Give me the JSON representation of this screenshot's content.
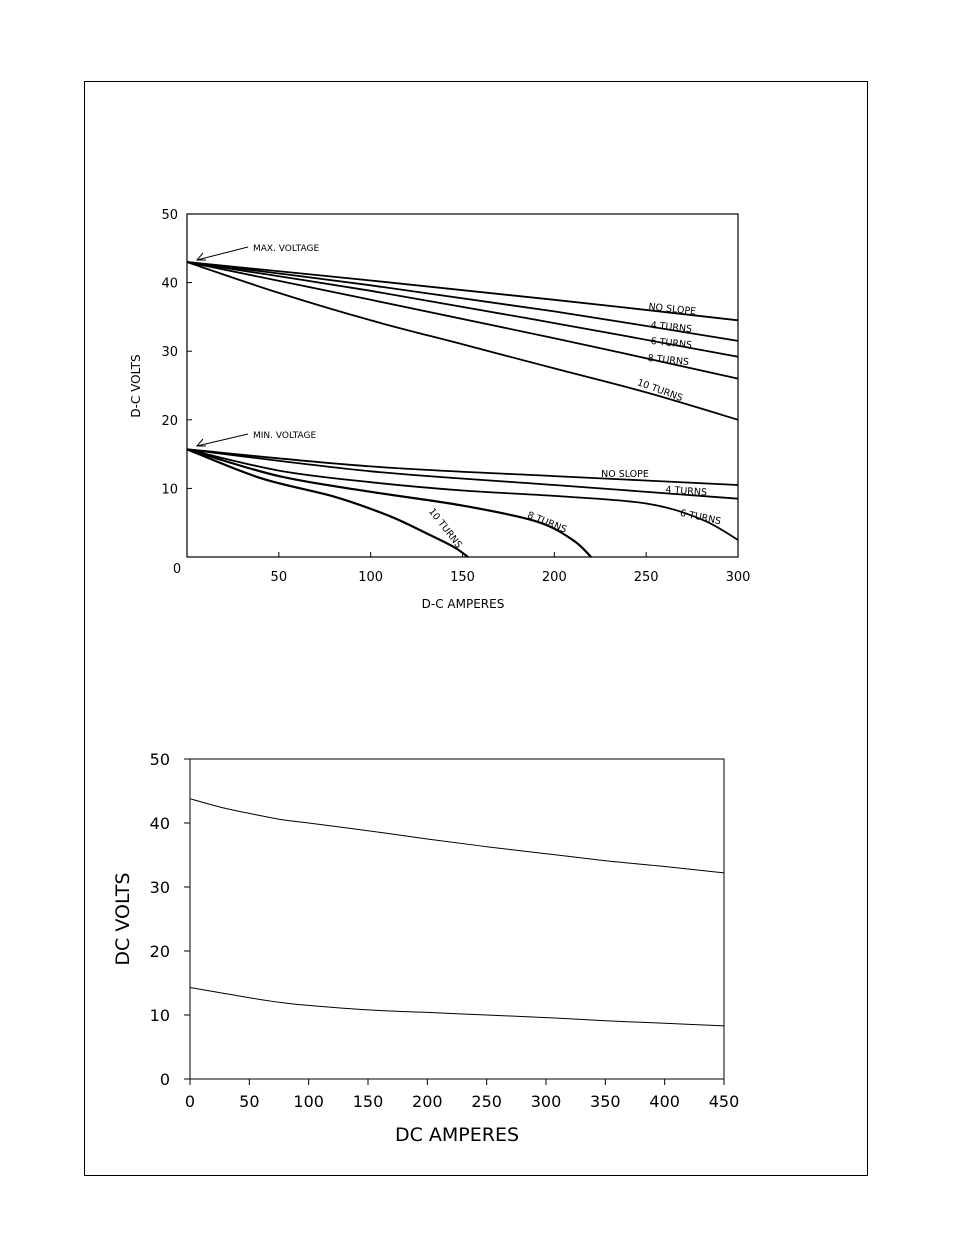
{
  "chart_data": [
    {
      "type": "line",
      "xlabel": "D-C AMPERES",
      "ylabel": "D-C VOLTS",
      "xlim": [
        0,
        300
      ],
      "ylim": [
        0,
        50
      ],
      "x_ticks": [
        "0",
        "50",
        "100",
        "150",
        "200",
        "250",
        "300"
      ],
      "y_ticks": [
        "50",
        "40",
        "30",
        "20",
        "10"
      ],
      "annotations": [
        "MAX. VOLTAGE",
        "MIN. VOLTAGE"
      ],
      "series": [
        {
          "name": "NO SLOPE",
          "group": "max",
          "x": [
            0,
            100,
            200,
            300
          ],
          "y": [
            43,
            40.3,
            37.5,
            34.5
          ]
        },
        {
          "name": "4 TURNS",
          "group": "max",
          "x": [
            0,
            100,
            200,
            300
          ],
          "y": [
            43,
            39.6,
            35.8,
            31.5
          ]
        },
        {
          "name": "6 TURNS",
          "group": "max",
          "x": [
            0,
            100,
            200,
            300
          ],
          "y": [
            43,
            38.8,
            34.1,
            29.2
          ]
        },
        {
          "name": "8 TURNS",
          "group": "max",
          "x": [
            0,
            100,
            200,
            300
          ],
          "y": [
            43,
            37.5,
            31.9,
            26
          ]
        },
        {
          "name": "10 TURNS",
          "group": "max",
          "x": [
            0,
            50,
            100,
            150,
            200,
            250,
            300
          ],
          "y": [
            43,
            38.5,
            34.5,
            31,
            27.5,
            24,
            20
          ]
        },
        {
          "name": "NO SLOPE",
          "group": "min",
          "x": [
            0,
            100,
            200,
            300
          ],
          "y": [
            15.7,
            13.2,
            11.8,
            10.5
          ]
        },
        {
          "name": "4 TURNS",
          "group": "min",
          "x": [
            0,
            100,
            200,
            300
          ],
          "y": [
            15.7,
            12.5,
            10.5,
            8.5
          ]
        },
        {
          "name": "6 TURNS",
          "group": "min",
          "x": [
            0,
            50,
            100,
            150,
            200,
            250,
            280,
            300
          ],
          "y": [
            15.7,
            12.6,
            10.9,
            9.7,
            8.9,
            7.8,
            5.5,
            2.5
          ]
        },
        {
          "name": "8 TURNS",
          "group": "min",
          "x": [
            0,
            50,
            100,
            150,
            190,
            210,
            220
          ],
          "y": [
            15.7,
            11.8,
            9.5,
            7.5,
            5.2,
            2.5,
            0
          ]
        },
        {
          "name": "10 TURNS",
          "group": "min",
          "x": [
            0,
            40,
            80,
            110,
            130,
            145,
            153
          ],
          "y": [
            15.7,
            11.5,
            8.8,
            6,
            3.5,
            1.5,
            0
          ]
        }
      ]
    },
    {
      "type": "line",
      "xlabel": "DC AMPERES",
      "ylabel": "DC VOLTS",
      "xlim": [
        0,
        450
      ],
      "ylim": [
        0,
        50
      ],
      "x_ticks": [
        "0",
        "50",
        "100",
        "150",
        "200",
        "250",
        "300",
        "350",
        "400",
        "450"
      ],
      "y_ticks": [
        "50",
        "40",
        "30",
        "20",
        "10",
        "0"
      ],
      "series": [
        {
          "x": [
            0,
            25,
            50,
            75,
            100,
            150,
            200,
            250,
            300,
            350,
            400,
            450
          ],
          "y": [
            43.8,
            42.5,
            41.5,
            40.6,
            40,
            38.8,
            37.5,
            36.3,
            35.2,
            34.1,
            33.2,
            32.2
          ]
        },
        {
          "x": [
            0,
            25,
            50,
            75,
            100,
            150,
            200,
            250,
            300,
            350,
            400,
            450
          ],
          "y": [
            14.3,
            13.5,
            12.7,
            12,
            11.5,
            10.8,
            10.4,
            10,
            9.6,
            9.1,
            8.7,
            8.3
          ]
        }
      ]
    }
  ]
}
